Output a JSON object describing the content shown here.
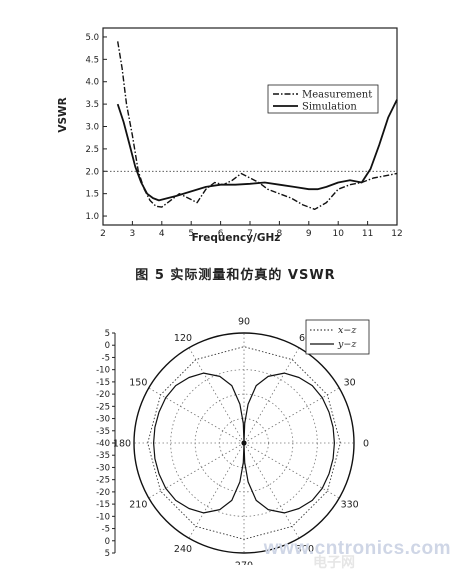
{
  "figure": {
    "caption": "图 5 实际测量和仿真的 VSWR"
  },
  "chart_data": [
    {
      "type": "line",
      "xlabel": "Frequency/GHz",
      "ylabel": "VSWR",
      "xlim": [
        2,
        12
      ],
      "ylim": [
        0.8,
        5.2
      ],
      "xticks": [
        2,
        3,
        4,
        5,
        6,
        7,
        8,
        9,
        10,
        11,
        12
      ],
      "yticks": [
        1.0,
        1.5,
        2.0,
        2.5,
        3.0,
        3.5,
        4.0,
        4.5,
        5.0
      ],
      "yticklabels": [
        "1.0",
        "1.5",
        "2.0",
        "2.5",
        "3.0",
        "3.5",
        "4.0",
        "4.5",
        "5.0"
      ],
      "legend_position": "top-right",
      "reference_line": {
        "y": 2.0,
        "style": "dotted"
      },
      "series": [
        {
          "name": "Measurement",
          "style": "dash-dot",
          "x": [
            2.5,
            2.65,
            2.8,
            3.0,
            3.2,
            3.4,
            3.6,
            3.8,
            4.0,
            4.3,
            4.6,
            4.9,
            5.2,
            5.5,
            5.8,
            6.1,
            6.4,
            6.7,
            7.0,
            7.3,
            7.6,
            8.0,
            8.4,
            8.8,
            9.2,
            9.6,
            10.0,
            10.4,
            10.8,
            11.2,
            11.6,
            12.0
          ],
          "y": [
            4.9,
            4.3,
            3.5,
            2.8,
            2.0,
            1.6,
            1.35,
            1.22,
            1.2,
            1.35,
            1.5,
            1.4,
            1.3,
            1.6,
            1.75,
            1.7,
            1.8,
            1.95,
            1.85,
            1.75,
            1.6,
            1.5,
            1.4,
            1.25,
            1.15,
            1.3,
            1.6,
            1.7,
            1.75,
            1.85,
            1.9,
            1.95
          ]
        },
        {
          "name": "Simulation",
          "style": "solid",
          "x": [
            2.5,
            2.7,
            2.9,
            3.1,
            3.3,
            3.5,
            3.7,
            3.9,
            4.2,
            4.5,
            5.0,
            5.5,
            6.0,
            6.5,
            7.0,
            7.5,
            8.0,
            8.5,
            9.0,
            9.3,
            9.6,
            10.0,
            10.4,
            10.8,
            11.1,
            11.4,
            11.7,
            12.0
          ],
          "y": [
            3.5,
            3.1,
            2.6,
            2.1,
            1.75,
            1.5,
            1.4,
            1.35,
            1.4,
            1.45,
            1.55,
            1.65,
            1.7,
            1.7,
            1.72,
            1.75,
            1.7,
            1.65,
            1.6,
            1.6,
            1.65,
            1.75,
            1.8,
            1.75,
            2.05,
            2.6,
            3.2,
            3.6
          ]
        }
      ]
    },
    {
      "type": "polar",
      "radial_unit": "dB",
      "radial_range": [
        -40,
        5
      ],
      "radial_ticks_top": [
        "5",
        "0",
        "-5",
        "-10",
        "-15",
        "-20",
        "-25",
        "-30",
        "-35",
        "-40"
      ],
      "radial_ticks_bottom": [
        "-35",
        "-30",
        "-25",
        "-20",
        "-15",
        "-10",
        "-5",
        "0",
        "5"
      ],
      "angle_labels": [
        "0",
        "30",
        "60",
        "90",
        "120",
        "150",
        "180",
        "210",
        "240",
        "270",
        "300",
        "330"
      ],
      "legend_position": "top-right",
      "series": [
        {
          "name": "x−z",
          "style": "dotted",
          "angles": [
            0,
            30,
            60,
            90,
            120,
            150,
            180,
            210,
            240,
            270,
            300,
            330,
            360
          ],
          "values": [
            0,
            0,
            0,
            0,
            0,
            0,
            0,
            0,
            0,
            0,
            0,
            0,
            0
          ]
        },
        {
          "name": "y−z",
          "style": "solid",
          "angles": [
            0,
            10,
            20,
            30,
            40,
            50,
            60,
            70,
            78,
            84,
            88,
            90,
            92,
            96,
            102,
            110,
            120,
            130,
            140,
            150,
            160,
            170,
            180,
            190,
            200,
            210,
            220,
            230,
            240,
            250,
            258,
            264,
            268,
            270,
            272,
            276,
            282,
            290,
            300,
            310,
            320,
            330,
            340,
            350,
            360
          ],
          "values": [
            -3,
            -3,
            -3,
            -3,
            -3.5,
            -5,
            -7,
            -11,
            -16,
            -24,
            -32,
            -40,
            -32,
            -24,
            -16,
            -11,
            -7,
            -5,
            -3.5,
            -3,
            -3,
            -3,
            -3,
            -3,
            -3,
            -3,
            -3.5,
            -5,
            -7,
            -11,
            -16,
            -24,
            -32,
            -40,
            -32,
            -24,
            -16,
            -11,
            -7,
            -5,
            -3.5,
            -3,
            -3,
            -3,
            -3
          ]
        }
      ]
    }
  ],
  "watermark": {
    "text": "www.cntronics.com",
    "sub": "电子网"
  }
}
